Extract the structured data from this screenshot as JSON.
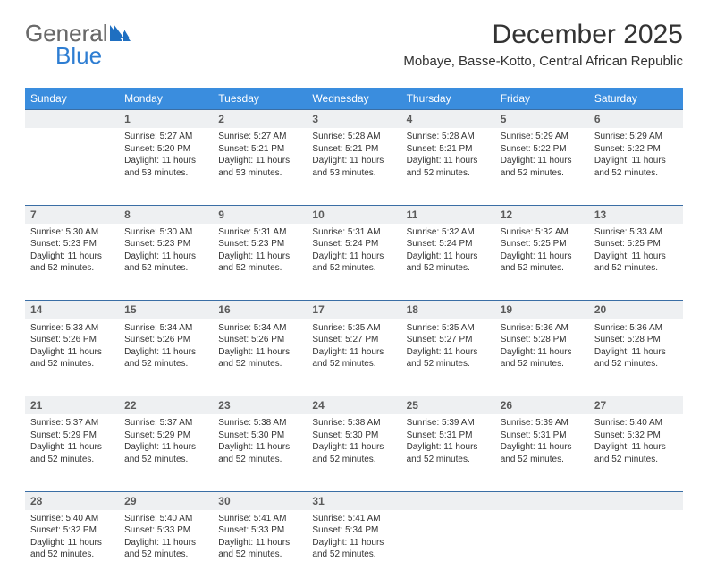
{
  "logo": {
    "general": "General",
    "blue": "Blue"
  },
  "title": "December 2025",
  "location": "Mobaye, Basse-Kotto, Central African Republic",
  "header_bg": "#3a8dde",
  "daynum_bg": "#eef0f2",
  "daynum_border": "#3a6ea5",
  "text_color": "#333333",
  "days": [
    "Sunday",
    "Monday",
    "Tuesday",
    "Wednesday",
    "Thursday",
    "Friday",
    "Saturday"
  ],
  "weeks": [
    [
      null,
      {
        "n": "1",
        "sr": "Sunrise: 5:27 AM",
        "ss": "Sunset: 5:20 PM",
        "dl": "Daylight: 11 hours and 53 minutes."
      },
      {
        "n": "2",
        "sr": "Sunrise: 5:27 AM",
        "ss": "Sunset: 5:21 PM",
        "dl": "Daylight: 11 hours and 53 minutes."
      },
      {
        "n": "3",
        "sr": "Sunrise: 5:28 AM",
        "ss": "Sunset: 5:21 PM",
        "dl": "Daylight: 11 hours and 53 minutes."
      },
      {
        "n": "4",
        "sr": "Sunrise: 5:28 AM",
        "ss": "Sunset: 5:21 PM",
        "dl": "Daylight: 11 hours and 52 minutes."
      },
      {
        "n": "5",
        "sr": "Sunrise: 5:29 AM",
        "ss": "Sunset: 5:22 PM",
        "dl": "Daylight: 11 hours and 52 minutes."
      },
      {
        "n": "6",
        "sr": "Sunrise: 5:29 AM",
        "ss": "Sunset: 5:22 PM",
        "dl": "Daylight: 11 hours and 52 minutes."
      }
    ],
    [
      {
        "n": "7",
        "sr": "Sunrise: 5:30 AM",
        "ss": "Sunset: 5:23 PM",
        "dl": "Daylight: 11 hours and 52 minutes."
      },
      {
        "n": "8",
        "sr": "Sunrise: 5:30 AM",
        "ss": "Sunset: 5:23 PM",
        "dl": "Daylight: 11 hours and 52 minutes."
      },
      {
        "n": "9",
        "sr": "Sunrise: 5:31 AM",
        "ss": "Sunset: 5:23 PM",
        "dl": "Daylight: 11 hours and 52 minutes."
      },
      {
        "n": "10",
        "sr": "Sunrise: 5:31 AM",
        "ss": "Sunset: 5:24 PM",
        "dl": "Daylight: 11 hours and 52 minutes."
      },
      {
        "n": "11",
        "sr": "Sunrise: 5:32 AM",
        "ss": "Sunset: 5:24 PM",
        "dl": "Daylight: 11 hours and 52 minutes."
      },
      {
        "n": "12",
        "sr": "Sunrise: 5:32 AM",
        "ss": "Sunset: 5:25 PM",
        "dl": "Daylight: 11 hours and 52 minutes."
      },
      {
        "n": "13",
        "sr": "Sunrise: 5:33 AM",
        "ss": "Sunset: 5:25 PM",
        "dl": "Daylight: 11 hours and 52 minutes."
      }
    ],
    [
      {
        "n": "14",
        "sr": "Sunrise: 5:33 AM",
        "ss": "Sunset: 5:26 PM",
        "dl": "Daylight: 11 hours and 52 minutes."
      },
      {
        "n": "15",
        "sr": "Sunrise: 5:34 AM",
        "ss": "Sunset: 5:26 PM",
        "dl": "Daylight: 11 hours and 52 minutes."
      },
      {
        "n": "16",
        "sr": "Sunrise: 5:34 AM",
        "ss": "Sunset: 5:26 PM",
        "dl": "Daylight: 11 hours and 52 minutes."
      },
      {
        "n": "17",
        "sr": "Sunrise: 5:35 AM",
        "ss": "Sunset: 5:27 PM",
        "dl": "Daylight: 11 hours and 52 minutes."
      },
      {
        "n": "18",
        "sr": "Sunrise: 5:35 AM",
        "ss": "Sunset: 5:27 PM",
        "dl": "Daylight: 11 hours and 52 minutes."
      },
      {
        "n": "19",
        "sr": "Sunrise: 5:36 AM",
        "ss": "Sunset: 5:28 PM",
        "dl": "Daylight: 11 hours and 52 minutes."
      },
      {
        "n": "20",
        "sr": "Sunrise: 5:36 AM",
        "ss": "Sunset: 5:28 PM",
        "dl": "Daylight: 11 hours and 52 minutes."
      }
    ],
    [
      {
        "n": "21",
        "sr": "Sunrise: 5:37 AM",
        "ss": "Sunset: 5:29 PM",
        "dl": "Daylight: 11 hours and 52 minutes."
      },
      {
        "n": "22",
        "sr": "Sunrise: 5:37 AM",
        "ss": "Sunset: 5:29 PM",
        "dl": "Daylight: 11 hours and 52 minutes."
      },
      {
        "n": "23",
        "sr": "Sunrise: 5:38 AM",
        "ss": "Sunset: 5:30 PM",
        "dl": "Daylight: 11 hours and 52 minutes."
      },
      {
        "n": "24",
        "sr": "Sunrise: 5:38 AM",
        "ss": "Sunset: 5:30 PM",
        "dl": "Daylight: 11 hours and 52 minutes."
      },
      {
        "n": "25",
        "sr": "Sunrise: 5:39 AM",
        "ss": "Sunset: 5:31 PM",
        "dl": "Daylight: 11 hours and 52 minutes."
      },
      {
        "n": "26",
        "sr": "Sunrise: 5:39 AM",
        "ss": "Sunset: 5:31 PM",
        "dl": "Daylight: 11 hours and 52 minutes."
      },
      {
        "n": "27",
        "sr": "Sunrise: 5:40 AM",
        "ss": "Sunset: 5:32 PM",
        "dl": "Daylight: 11 hours and 52 minutes."
      }
    ],
    [
      {
        "n": "28",
        "sr": "Sunrise: 5:40 AM",
        "ss": "Sunset: 5:32 PM",
        "dl": "Daylight: 11 hours and 52 minutes."
      },
      {
        "n": "29",
        "sr": "Sunrise: 5:40 AM",
        "ss": "Sunset: 5:33 PM",
        "dl": "Daylight: 11 hours and 52 minutes."
      },
      {
        "n": "30",
        "sr": "Sunrise: 5:41 AM",
        "ss": "Sunset: 5:33 PM",
        "dl": "Daylight: 11 hours and 52 minutes."
      },
      {
        "n": "31",
        "sr": "Sunrise: 5:41 AM",
        "ss": "Sunset: 5:34 PM",
        "dl": "Daylight: 11 hours and 52 minutes."
      },
      null,
      null,
      null
    ]
  ]
}
